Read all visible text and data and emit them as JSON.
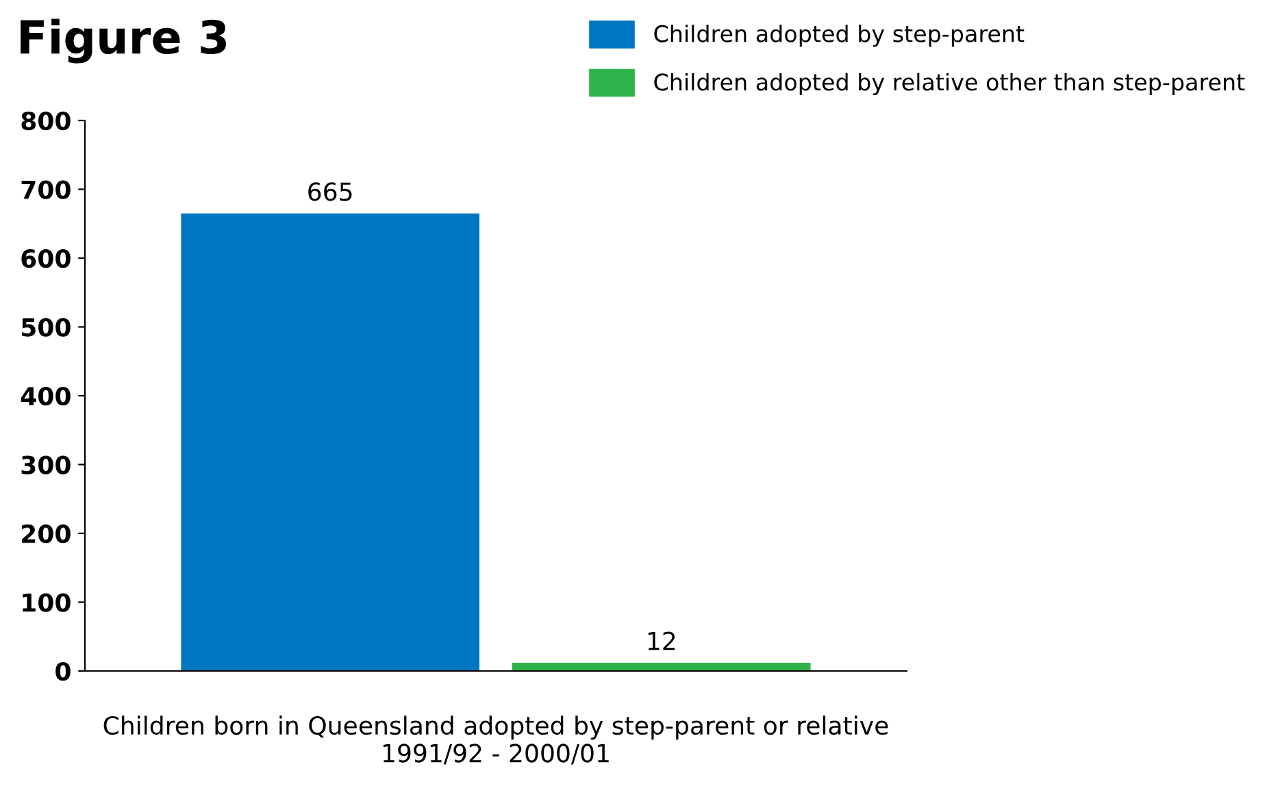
{
  "chart_data": {
    "type": "bar",
    "title": "Figure 3",
    "xlabel": "Children born in Queensland adopted by step-parent or relative\n1991/92 - 2000/01",
    "categories": [
      null
    ],
    "series": [
      {
        "name": "Children adopted by step-parent",
        "color": "#0077c0",
        "values": [
          665
        ]
      },
      {
        "name": "Children adopted by relative other than step-parent",
        "color": "#2db34a",
        "values": [
          12
        ]
      }
    ],
    "ylim": [
      0,
      800
    ],
    "yticks": [
      0,
      100,
      200,
      300,
      400,
      500,
      600,
      700,
      800
    ],
    "grid": false,
    "legend": "top right",
    "data_labels": true
  }
}
